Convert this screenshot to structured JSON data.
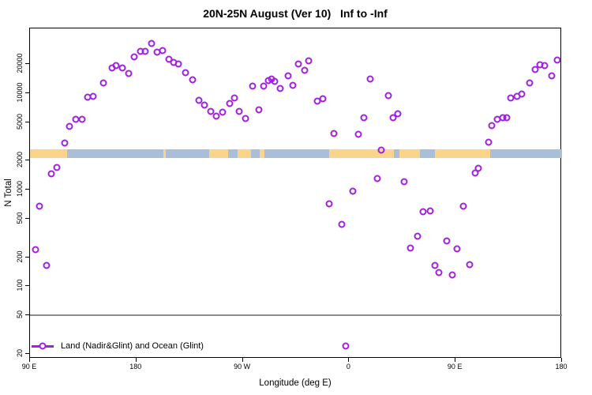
{
  "title": "20N-25N August (Ver 10)   Inf to -Inf",
  "legend": {
    "label": "Land (Nadir&Glint) and Ocean (Glint)"
  },
  "colors": {
    "marker": "#A21FE0",
    "ocean_band": "#A9BFD9",
    "land_band": "#FBD489",
    "reference_line": "#8C8C8C",
    "axis": "#000000"
  },
  "chart_data": {
    "type": "scatter",
    "title": "20N-25N August (Ver 10)   Inf to -Inf",
    "xlabel": "Longitude (deg E)",
    "ylabel": "N Total",
    "x_axis": {
      "min": 90,
      "max": 540,
      "ticks": [
        {
          "v": 90,
          "label": "90 E"
        },
        {
          "v": 180,
          "label": "180"
        },
        {
          "v": 270,
          "label": "90 W"
        },
        {
          "v": 360,
          "label": "0"
        },
        {
          "v": 450,
          "label": "90 E"
        },
        {
          "v": 540,
          "label": "180"
        }
      ]
    },
    "y_axis": {
      "scale": "log",
      "min": 18,
      "max": 46000,
      "ticks": [
        {
          "v": 20,
          "label": "20"
        },
        {
          "v": 50,
          "label": "50"
        },
        {
          "v": 100,
          "label": "100"
        },
        {
          "v": 200,
          "label": "200"
        },
        {
          "v": 500,
          "label": "500"
        },
        {
          "v": 1000,
          "label": "1000"
        },
        {
          "v": 2000,
          "label": "2000"
        },
        {
          "v": 5000,
          "label": "5000"
        },
        {
          "v": 10000,
          "label": "10000"
        },
        {
          "v": 20000,
          "label": "20000"
        }
      ]
    },
    "reference_line_y": 50,
    "map_band": {
      "value_top": 2620,
      "value_bottom": 2130,
      "ocean_color": "#A9BFD9",
      "land_color": "#FBD489",
      "land_segments": [
        {
          "from": 90,
          "to": 121.4
        },
        {
          "from": 202.8,
          "to": 204.8
        },
        {
          "from": 241.6,
          "to": 257.6
        },
        {
          "from": 265.6,
          "to": 277.0
        },
        {
          "from": 284.3,
          "to": 288.3
        },
        {
          "from": 343.1,
          "to": 397.9
        },
        {
          "from": 402.6,
          "to": 419.9
        },
        {
          "from": 432.6,
          "to": 479.0
        }
      ]
    },
    "series": [
      {
        "name": "Land (Nadir&Glint) and Ocean (Glint)",
        "color": "#A21FE0",
        "marker": "open-circle",
        "points": [
          [
            94.7,
            240
          ],
          [
            98,
            670
          ],
          [
            104,
            165
          ],
          [
            108.2,
            1450
          ],
          [
            112.7,
            1690
          ],
          [
            119.2,
            3050
          ],
          [
            123.6,
            4550
          ],
          [
            128.9,
            5350
          ],
          [
            133.9,
            5400
          ],
          [
            138.8,
            9000
          ],
          [
            143.6,
            9200
          ],
          [
            152,
            12700
          ],
          [
            159.2,
            18200
          ],
          [
            162.8,
            19200
          ],
          [
            168.2,
            18100
          ],
          [
            173.3,
            16100
          ],
          [
            178.4,
            23500
          ],
          [
            183.3,
            26900
          ],
          [
            187.3,
            26900
          ],
          [
            192.7,
            32400
          ],
          [
            197.7,
            26700
          ],
          [
            202.2,
            27600
          ],
          [
            207.6,
            22500
          ],
          [
            211.6,
            20800
          ],
          [
            215.6,
            20000
          ],
          [
            221.8,
            16300
          ],
          [
            227.4,
            13650
          ],
          [
            233,
            8460
          ],
          [
            237.4,
            7470
          ],
          [
            243,
            6460
          ],
          [
            247.9,
            5800
          ],
          [
            253,
            6340
          ],
          [
            259,
            7800
          ],
          [
            263,
            8960
          ],
          [
            266.8,
            6460
          ],
          [
            272.4,
            5430
          ],
          [
            278.6,
            11880
          ],
          [
            283.5,
            6770
          ],
          [
            287.5,
            11880
          ],
          [
            291.9,
            13400
          ],
          [
            294.6,
            14000
          ],
          [
            297.3,
            13100
          ],
          [
            301.8,
            11150
          ],
          [
            308.5,
            15100
          ],
          [
            312.4,
            12130
          ],
          [
            317.3,
            19850
          ],
          [
            322.5,
            17150
          ],
          [
            325.8,
            21600
          ],
          [
            333,
            8270
          ],
          [
            337.4,
            8670
          ],
          [
            343,
            710
          ],
          [
            347,
            3790
          ],
          [
            353.6,
            440
          ],
          [
            357.2,
            24
          ],
          [
            363,
            960
          ],
          [
            367.7,
            3720
          ],
          [
            372.2,
            5530
          ],
          [
            377.5,
            13990
          ],
          [
            383.8,
            1300
          ],
          [
            387,
            2570
          ],
          [
            393,
            9420
          ],
          [
            397.4,
            5600
          ],
          [
            401.4,
            6080
          ],
          [
            406.3,
            1210
          ],
          [
            411.5,
            247
          ],
          [
            417.5,
            332
          ],
          [
            422.2,
            594
          ],
          [
            428.2,
            600
          ],
          [
            432.3,
            164
          ],
          [
            436,
            138
          ],
          [
            442.7,
            293
          ],
          [
            447.1,
            132
          ],
          [
            450.9,
            243
          ],
          [
            456.7,
            676
          ],
          [
            462.1,
            166
          ],
          [
            466.8,
            1497
          ],
          [
            469.4,
            1675
          ],
          [
            477.8,
            3080
          ],
          [
            480.9,
            4620
          ],
          [
            485,
            5330
          ],
          [
            489.8,
            5530
          ],
          [
            493.4,
            5530
          ],
          [
            496.8,
            8900
          ],
          [
            502.1,
            9300
          ],
          [
            506.1,
            9700
          ],
          [
            512.4,
            12650
          ],
          [
            517.3,
            17600
          ],
          [
            521.3,
            19800
          ],
          [
            525.3,
            19100
          ],
          [
            531.3,
            15000
          ],
          [
            536,
            21800
          ]
        ]
      }
    ]
  }
}
